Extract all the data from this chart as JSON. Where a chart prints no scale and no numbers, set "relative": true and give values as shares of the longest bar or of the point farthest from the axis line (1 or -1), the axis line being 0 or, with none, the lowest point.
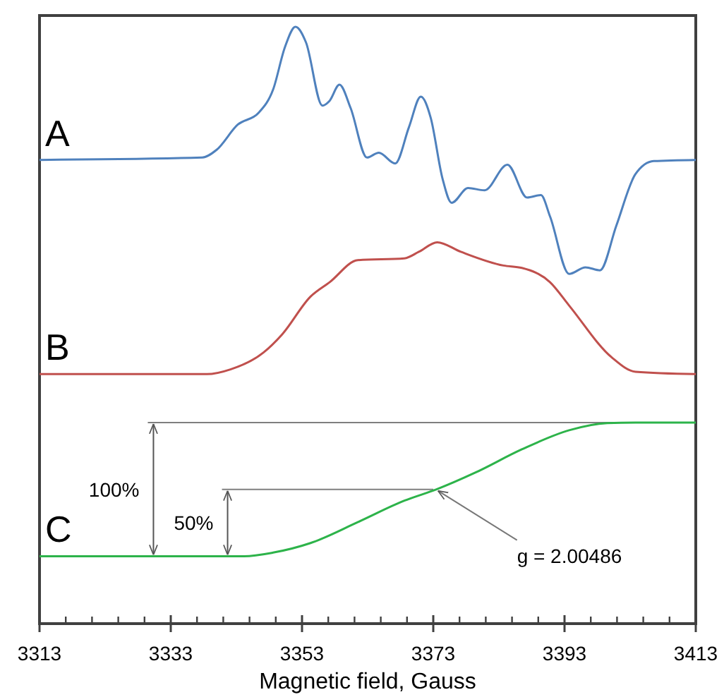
{
  "chart_data": {
    "type": "line",
    "relative": true,
    "xlabel": "Magnetic field, Gauss",
    "xlim": [
      3313,
      3413
    ],
    "xticks": [
      3313,
      {
        "value": 3317,
        "label": null
      },
      {
        "value": 3321,
        "label": null
      },
      {
        "value": 3325,
        "label": null
      },
      {
        "value": 3329,
        "label": null
      },
      3333,
      {
        "value": 3337,
        "label": null
      },
      {
        "value": 3341,
        "label": null
      },
      {
        "value": 3345,
        "label": null
      },
      {
        "value": 3349,
        "label": null
      },
      3353,
      {
        "value": 3357,
        "label": null
      },
      {
        "value": 3361,
        "label": null
      },
      {
        "value": 3365,
        "label": null
      },
      {
        "value": 3369,
        "label": null
      },
      3373,
      {
        "value": 3377,
        "label": null
      },
      {
        "value": 3381,
        "label": null
      },
      {
        "value": 3385,
        "label": null
      },
      {
        "value": 3389,
        "label": null
      },
      3393,
      {
        "value": 3397,
        "label": null
      },
      {
        "value": 3401,
        "label": null
      },
      {
        "value": 3405,
        "label": null
      },
      {
        "value": 3409,
        "label": null
      },
      3413
    ],
    "grid": false,
    "marker": "none",
    "line_style": "solid",
    "series": [
      {
        "name": "A",
        "color": "#4f81bd",
        "x": [
          3313,
          3337.8,
          3340.0,
          3343.2,
          3346.4,
          3348.6,
          3350.4,
          3352.0,
          3353.6,
          3356.1,
          3357.2,
          3358.7,
          3360.4,
          3362.9,
          3364.7,
          3367.2,
          3369.3,
          3371.1,
          3372.6,
          3374.4,
          3375.8,
          3378.3,
          3380.8,
          3384.3,
          3387.3,
          3389.4,
          3390.8,
          3393.7,
          3396.2,
          3398.4,
          3400.9,
          3403.8,
          3406.6,
          3413
        ],
        "values": [
          0.777,
          0.781,
          0.794,
          0.836,
          0.856,
          0.895,
          0.966,
          1.0,
          0.974,
          0.868,
          0.876,
          0.903,
          0.864,
          0.781,
          0.789,
          0.771,
          0.832,
          0.883,
          0.848,
          0.746,
          0.705,
          0.73,
          0.726,
          0.769,
          0.714,
          0.718,
          0.682,
          0.586,
          0.597,
          0.592,
          0.667,
          0.753,
          0.775,
          0.777
        ]
      },
      {
        "name": "B",
        "color": "#c0504d",
        "x": [
          3313,
          3338.5,
          3342.1,
          3347.1,
          3350.0,
          3354.3,
          3357.2,
          3361.5,
          3368.6,
          3370.8,
          3373.6,
          3377.2,
          3383.7,
          3386.5,
          3390.8,
          3393.7,
          3400.2,
          3403.8,
          3413
        ],
        "values": [
          0.418,
          0.418,
          0.426,
          0.454,
          0.485,
          0.548,
          0.572,
          0.609,
          0.612,
          0.623,
          0.639,
          0.623,
          0.6,
          0.596,
          0.572,
          0.533,
          0.446,
          0.422,
          0.418
        ]
      },
      {
        "name": "C",
        "color": "#2db34a",
        "x": [
          3313,
          3344.2,
          3348.6,
          3354.3,
          3361.5,
          3368.6,
          3373.5,
          3379.4,
          3386.5,
          3393.7,
          3399.5,
          3403.8,
          3413
        ],
        "values": [
          0.113,
          0.113,
          0.119,
          0.135,
          0.17,
          0.206,
          0.225,
          0.253,
          0.292,
          0.324,
          0.336,
          0.337,
          0.337
        ]
      }
    ],
    "ref_lines": [
      {
        "axis": "y",
        "value": 0.337,
        "color": "#7f7f7f"
      },
      {
        "axis": "y",
        "value": 0.225,
        "color": "#7f7f7f"
      }
    ],
    "annotations": [
      "100%",
      "50%",
      {
        "text": "g = 2.00486",
        "x": 3373.5,
        "y": 0.225
      }
    ]
  }
}
